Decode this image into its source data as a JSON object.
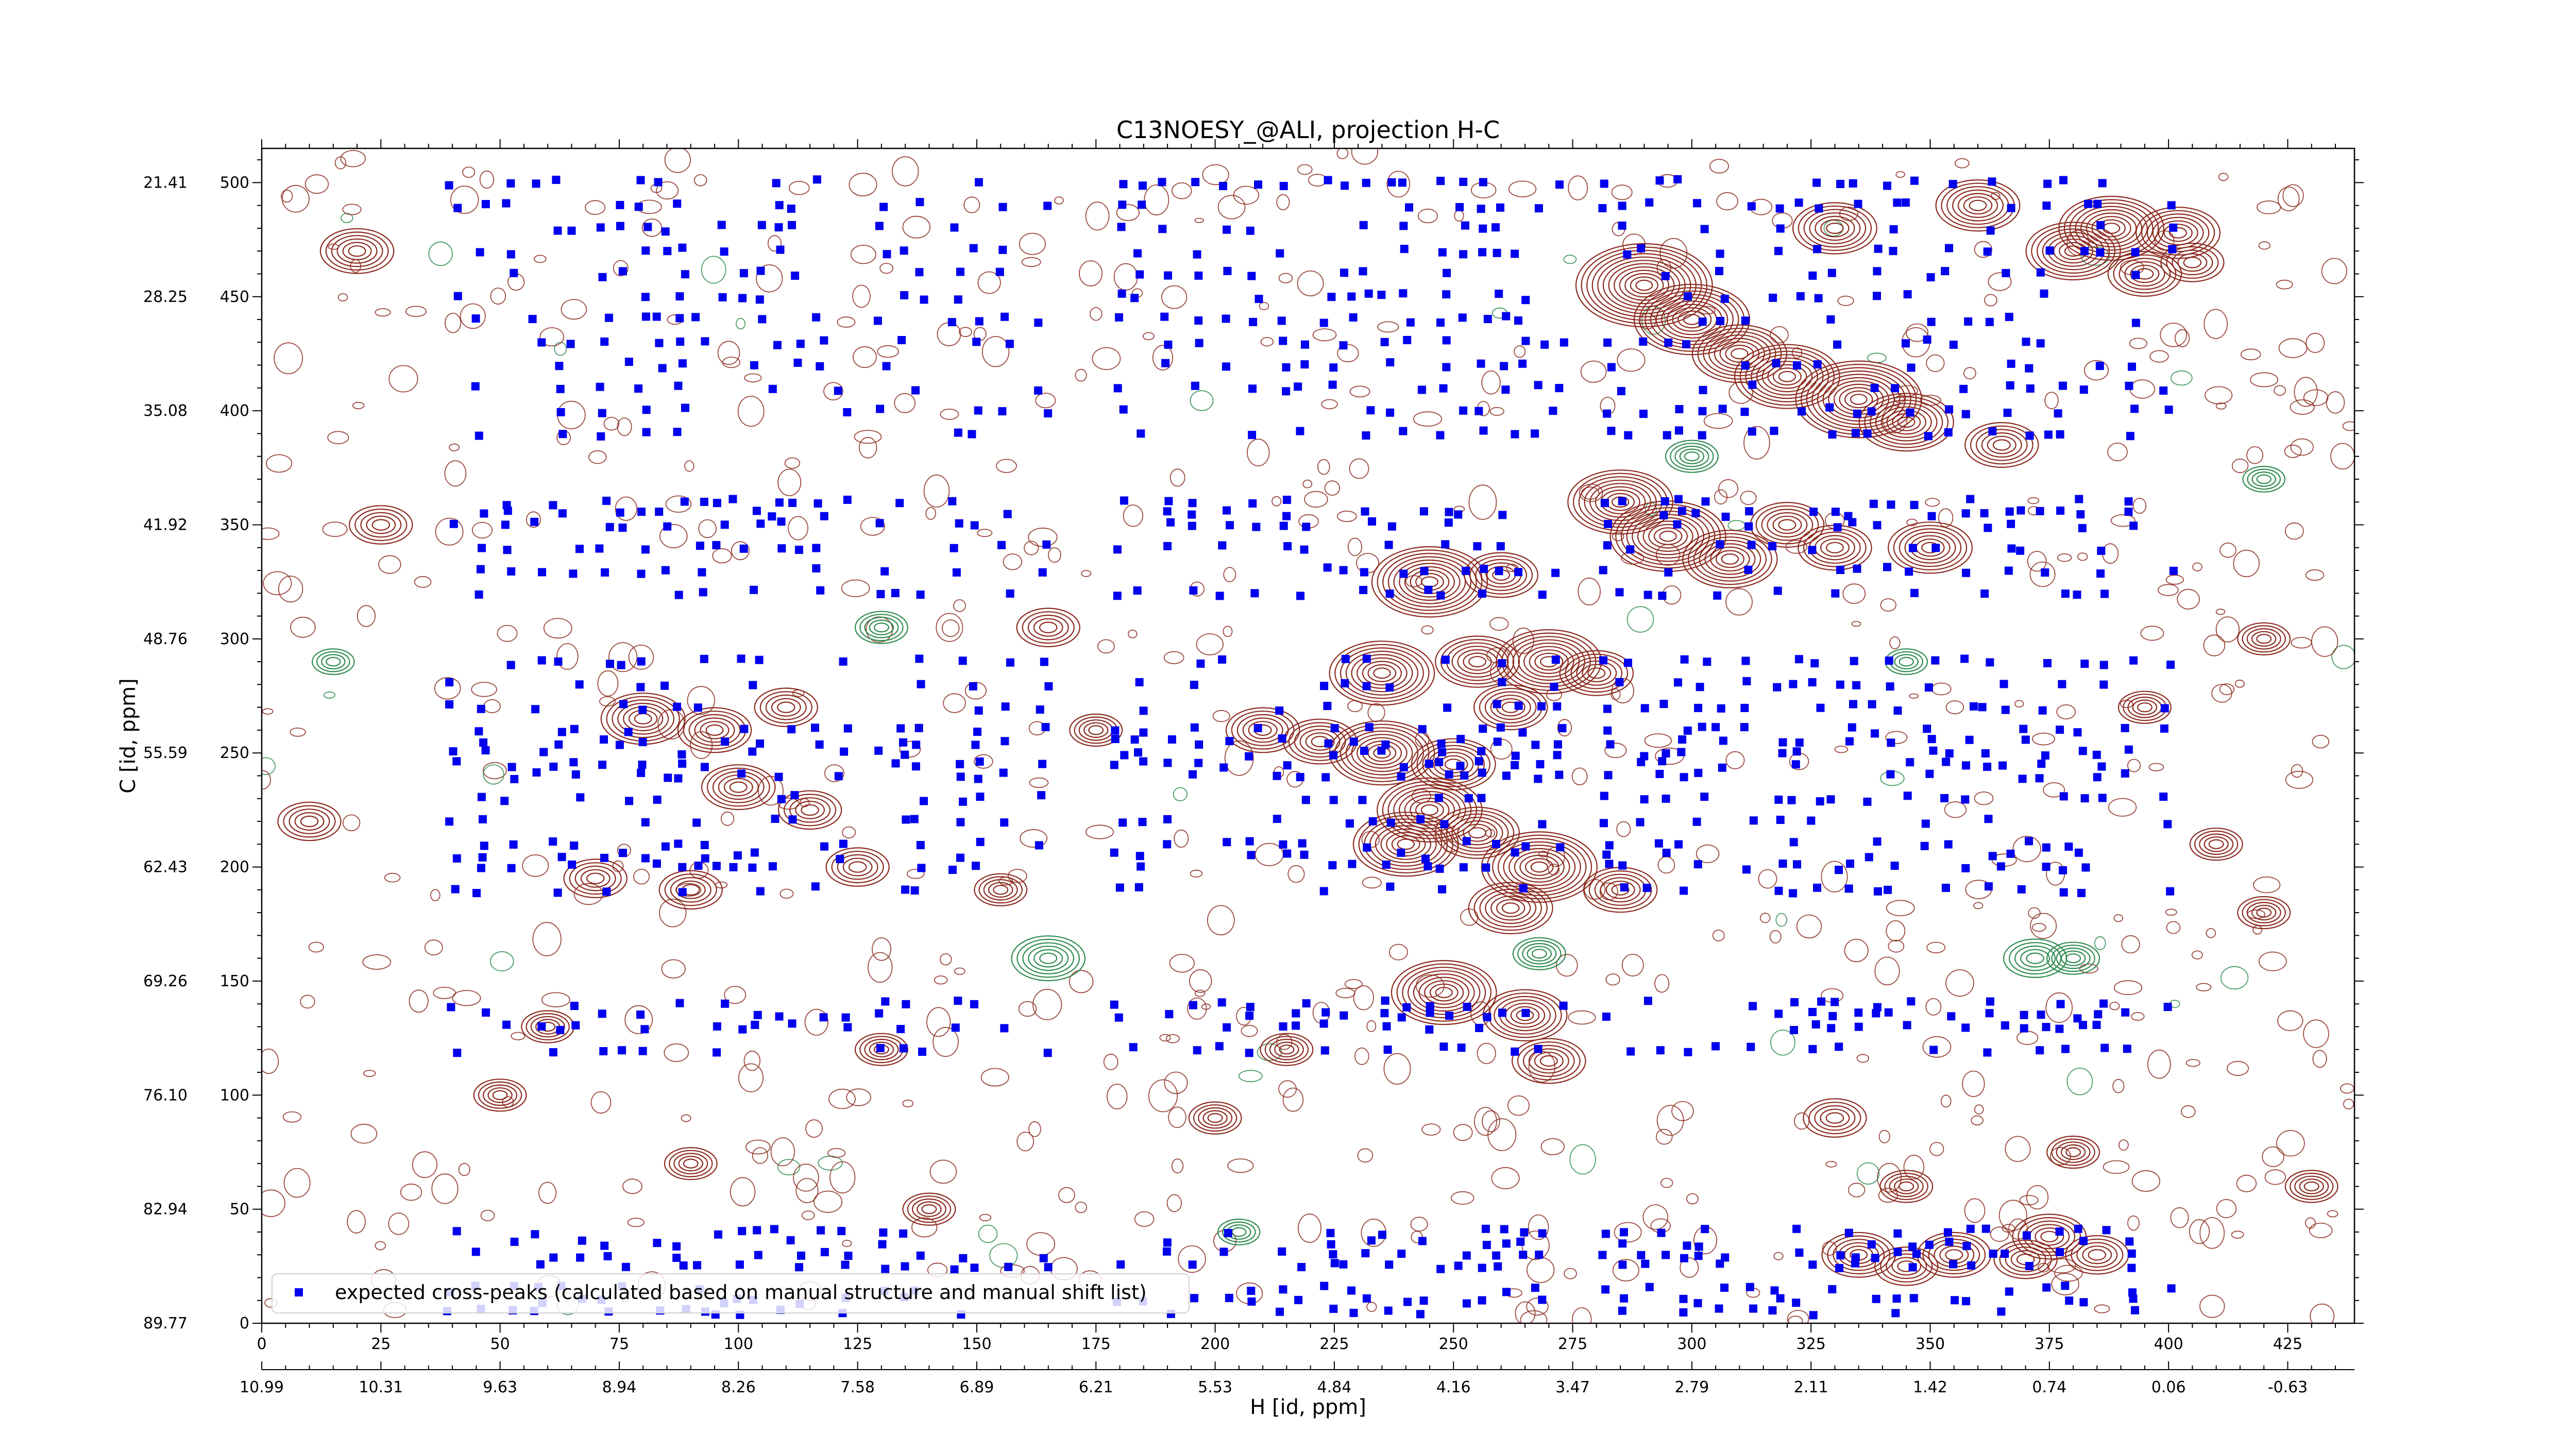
{
  "chart_data": {
    "type": "scatter",
    "title": "C13NOESY_@ALI, projection H-C",
    "xlabel": "H [id, ppm]",
    "ylabel": "C [id, ppm]",
    "xlim": [
      0,
      439
    ],
    "ylim": [
      0,
      515
    ],
    "x_ticks_index": [
      "0",
      "25",
      "50",
      "75",
      "100",
      "125",
      "150",
      "175",
      "200",
      "225",
      "250",
      "275",
      "300",
      "325",
      "350",
      "375",
      "400",
      "425"
    ],
    "x_ticks_ppm": [
      "10.99",
      "10.31",
      "9.63",
      "8.94",
      "8.26",
      "7.58",
      "6.89",
      "6.21",
      "5.53",
      "4.84",
      "4.16",
      "3.47",
      "2.79",
      "2.11",
      "1.42",
      "0.74",
      "0.06",
      "-0.63"
    ],
    "y_ticks_index": [
      "500",
      "450",
      "400",
      "350",
      "300",
      "250",
      "200",
      "150",
      "100",
      "50",
      "0"
    ],
    "y_ticks_ppm": [
      "21.41",
      "28.25",
      "35.08",
      "41.92",
      "48.76",
      "55.59",
      "62.43",
      "69.26",
      "76.10",
      "82.94",
      "89.77"
    ],
    "legend": {
      "label": "expected cross-peaks (calculated based on manual structure and manual shift list)",
      "placement": "lower-left"
    },
    "colors": {
      "expected_peaks": "#0000ee",
      "positive_contours": "#8b2a1e",
      "negative_contours": "#2e8b4e"
    },
    "series": [
      {
        "name": "expected cross-peaks (calculated based on manual structure and manual shift list)",
        "columns_x": [
          40,
          46,
          52,
          58,
          62,
          66,
          72,
          76,
          80,
          84,
          88,
          92,
          96,
          100,
          104,
          108,
          112,
          117,
          122,
          130,
          134,
          138,
          146,
          150,
          156,
          164,
          180,
          184,
          190,
          196,
          202,
          208,
          214,
          218,
          224,
          228,
          232,
          236,
          240,
          244,
          248,
          252,
          256,
          260,
          264,
          268,
          272,
          282,
          286,
          290,
          294,
          298,
          302,
          306,
          312,
          318,
          322,
          326,
          330,
          334,
          338,
          342,
          346,
          350,
          354,
          358,
          362,
          366,
          370,
          374,
          378,
          382,
          386,
          392,
          400
        ],
        "rows_y": [
          500,
          490,
          480,
          470,
          460,
          450,
          440,
          430,
          420,
          410,
          400,
          390,
          360,
          355,
          350,
          340,
          330,
          320,
          290,
          280,
          270,
          260,
          255,
          250,
          245,
          240,
          230,
          220,
          210,
          205,
          200,
          190,
          140,
          135,
          130,
          120,
          40,
          35,
          30,
          25,
          15,
          10,
          5
        ]
      }
    ],
    "contour_peaks": {
      "positive": [
        [
          290,
          455,
          26
        ],
        [
          300,
          440,
          22
        ],
        [
          310,
          425,
          18
        ],
        [
          320,
          415,
          20
        ],
        [
          335,
          405,
          24
        ],
        [
          345,
          395,
          18
        ],
        [
          365,
          385,
          14
        ],
        [
          380,
          470,
          18
        ],
        [
          388,
          480,
          20
        ],
        [
          395,
          460,
          14
        ],
        [
          402,
          478,
          16
        ],
        [
          405,
          465,
          12
        ],
        [
          330,
          480,
          16
        ],
        [
          360,
          490,
          16
        ],
        [
          285,
          360,
          20
        ],
        [
          295,
          345,
          22
        ],
        [
          308,
          335,
          18
        ],
        [
          320,
          350,
          14
        ],
        [
          330,
          340,
          14
        ],
        [
          350,
          340,
          16
        ],
        [
          245,
          325,
          22
        ],
        [
          260,
          328,
          14
        ],
        [
          235,
          285,
          20
        ],
        [
          255,
          290,
          16
        ],
        [
          270,
          290,
          20
        ],
        [
          280,
          285,
          14
        ],
        [
          262,
          270,
          14
        ],
        [
          210,
          260,
          14
        ],
        [
          222,
          255,
          14
        ],
        [
          235,
          250,
          20
        ],
        [
          250,
          245,
          16
        ],
        [
          245,
          225,
          20
        ],
        [
          255,
          215,
          16
        ],
        [
          268,
          200,
          22
        ],
        [
          285,
          190,
          14
        ],
        [
          262,
          182,
          16
        ],
        [
          240,
          210,
          20
        ],
        [
          248,
          145,
          20
        ],
        [
          265,
          135,
          16
        ],
        [
          270,
          115,
          14
        ],
        [
          100,
          235,
          14
        ],
        [
          115,
          225,
          12
        ],
        [
          70,
          195,
          12
        ],
        [
          90,
          190,
          12
        ],
        [
          125,
          200,
          12
        ],
        [
          80,
          265,
          16
        ],
        [
          95,
          260,
          14
        ],
        [
          110,
          270,
          12
        ],
        [
          335,
          30,
          14
        ],
        [
          345,
          25,
          12
        ],
        [
          355,
          30,
          14
        ],
        [
          370,
          28,
          12
        ],
        [
          375,
          38,
          14
        ],
        [
          385,
          30,
          12
        ],
        [
          165,
          305,
          12
        ],
        [
          155,
          190,
          10
        ],
        [
          175,
          260,
          10
        ],
        [
          395,
          270,
          10
        ],
        [
          410,
          210,
          10
        ],
        [
          420,
          300,
          10
        ],
        [
          20,
          470,
          14
        ],
        [
          25,
          350,
          12
        ],
        [
          10,
          220,
          12
        ],
        [
          50,
          100,
          10
        ],
        [
          90,
          70,
          10
        ],
        [
          140,
          50,
          10
        ],
        [
          200,
          90,
          10
        ],
        [
          330,
          90,
          12
        ],
        [
          345,
          60,
          10
        ],
        [
          380,
          75,
          10
        ],
        [
          420,
          180,
          10
        ],
        [
          430,
          60,
          10
        ],
        [
          130,
          120,
          10
        ],
        [
          60,
          130,
          10
        ],
        [
          215,
          120,
          10
        ]
      ],
      "negative": [
        [
          165,
          160,
          14
        ],
        [
          268,
          162,
          10
        ],
        [
          372,
          160,
          12
        ],
        [
          380,
          160,
          10
        ],
        [
          130,
          305,
          10
        ],
        [
          345,
          290,
          8
        ],
        [
          420,
          370,
          8
        ],
        [
          205,
          40,
          8
        ],
        [
          15,
          290,
          8
        ],
        [
          300,
          380,
          10
        ]
      ]
    }
  }
}
